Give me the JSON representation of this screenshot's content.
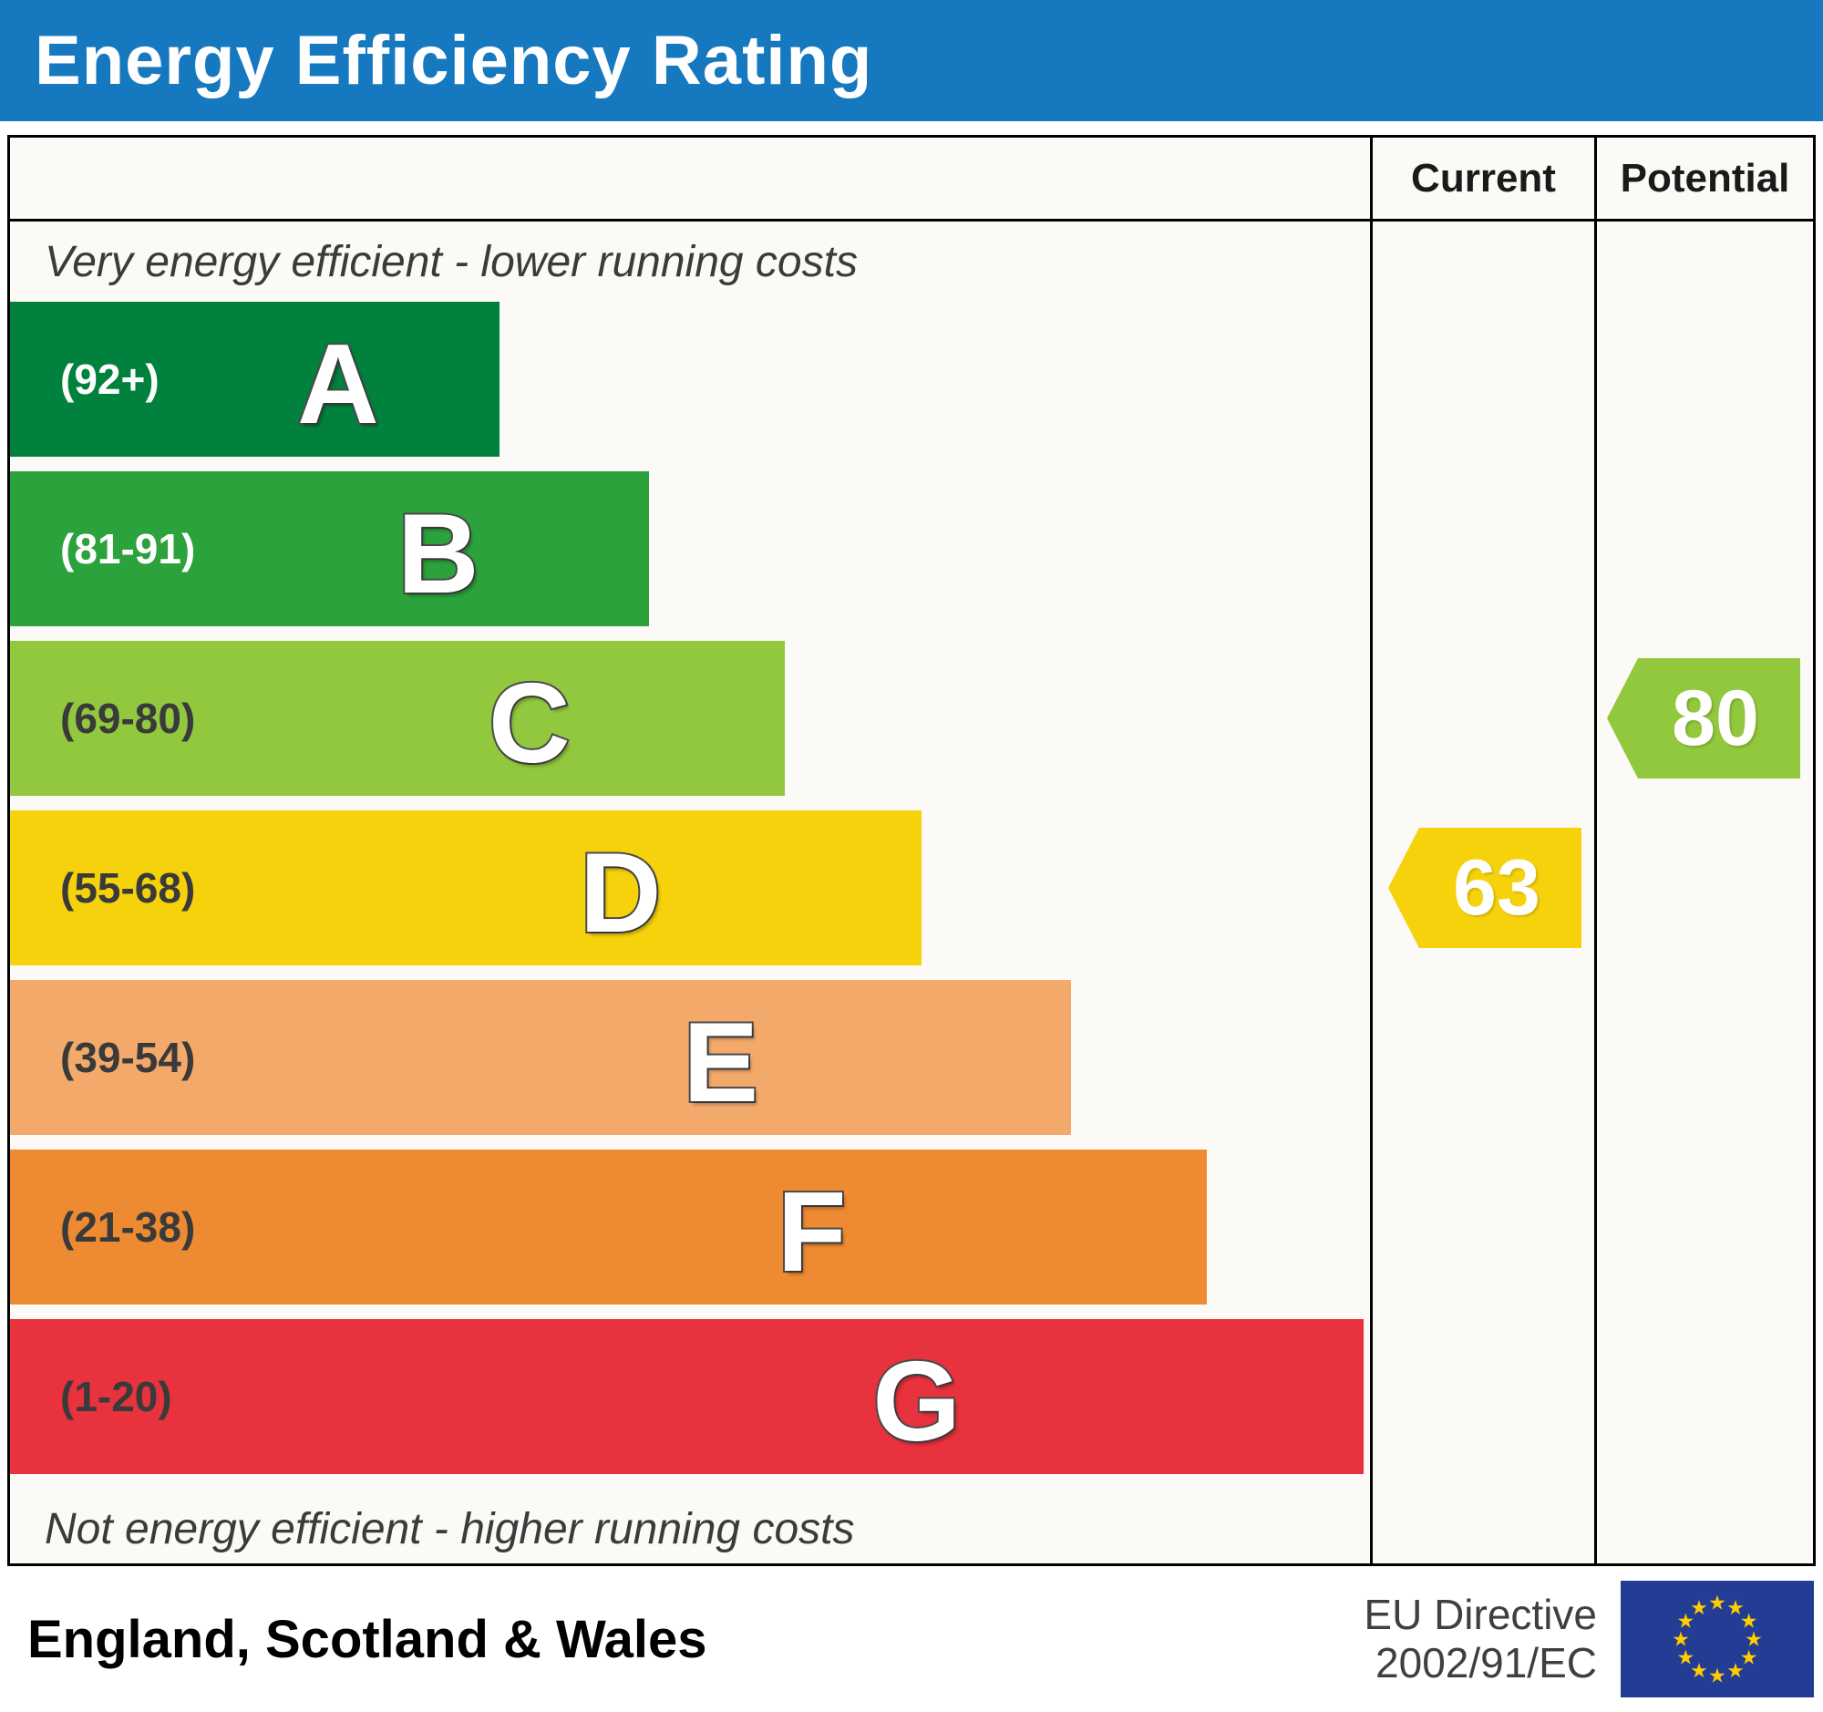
{
  "title": "Energy Efficiency Rating",
  "columns": {
    "current": "Current",
    "potential": "Potential"
  },
  "notes": {
    "top": "Very energy efficient - lower running costs",
    "bottom": "Not energy efficient - higher running costs"
  },
  "footer": {
    "region": "England, Scotland & Wales",
    "directive_line1": "EU Directive",
    "directive_line2": "2002/91/EC"
  },
  "colors": {
    "header_bg": "#1678be",
    "chart_bg": "#fbfaf6",
    "flag_blue": "#233d94",
    "star_yellow": "#ffcc00"
  },
  "chart_data": {
    "type": "bar",
    "title": "Energy Efficiency Rating",
    "categories": [
      "A",
      "B",
      "C",
      "D",
      "E",
      "F",
      "G"
    ],
    "bands": [
      {
        "letter": "A",
        "range": "(92+)",
        "color": "#00823e",
        "range_color": "#ffffff",
        "width_pct": 36
      },
      {
        "letter": "B",
        "range": "(81-91)",
        "color": "#2ca23c",
        "range_color": "#ffffff",
        "width_pct": 47
      },
      {
        "letter": "C",
        "range": "(69-80)",
        "color": "#92c83d",
        "range_color": "#3a3a3a",
        "width_pct": 57
      },
      {
        "letter": "D",
        "range": "(55-68)",
        "color": "#f6d20c",
        "range_color": "#3a3a3a",
        "width_pct": 67
      },
      {
        "letter": "E",
        "range": "(39-54)",
        "color": "#f3a96a",
        "range_color": "#3a3a3a",
        "width_pct": 78
      },
      {
        "letter": "F",
        "range": "(21-38)",
        "color": "#ee8a31",
        "range_color": "#3a3a3a",
        "width_pct": 88
      },
      {
        "letter": "G",
        "range": "(1-20)",
        "color": "#e8323d",
        "range_color": "#3a3a3a",
        "width_pct": 99.5
      }
    ],
    "current": {
      "value": 63,
      "band": "D",
      "color": "#f6d20c"
    },
    "potential": {
      "value": 80,
      "band": "C",
      "color": "#92c83d"
    }
  }
}
